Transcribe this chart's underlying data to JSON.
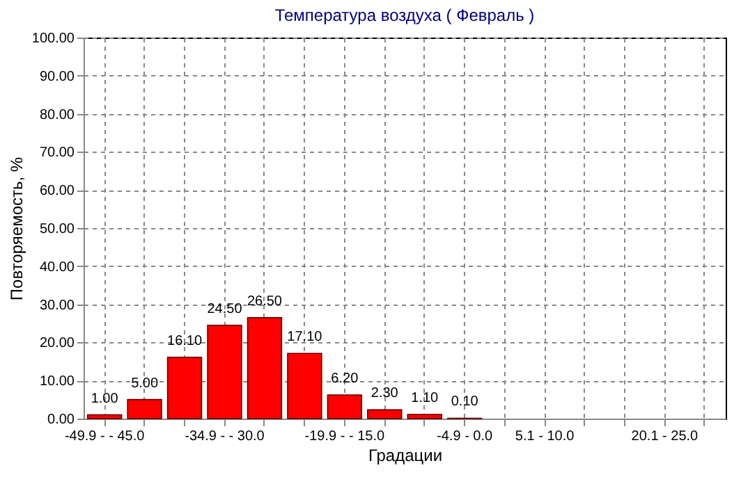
{
  "chart_data": {
    "type": "bar",
    "title": "Температура воздуха    ( Февраль )",
    "xlabel": "Градации",
    "ylabel": "Повторяемость, %",
    "categories": [
      "-49.9 -  - 45.0",
      null,
      null,
      "-34.9 -  - 30.0",
      null,
      null,
      "-19.9 -  - 15.0",
      null,
      null,
      "-4.9 - 0.0",
      null,
      "5.1 - 10.0",
      null,
      null,
      "20.1 - 25.0",
      null
    ],
    "values": [
      1.0,
      5.0,
      16.1,
      24.5,
      26.5,
      17.1,
      6.2,
      2.3,
      1.1,
      0.1,
      null,
      null,
      null,
      null,
      null,
      null
    ],
    "value_labels": [
      "1.00",
      "5.00",
      "16.10",
      "24.50",
      "26.50",
      "17.10",
      "6.20",
      "2.30",
      "1.10",
      "0.10",
      null,
      null,
      null,
      null,
      null,
      null
    ],
    "color": "#ff0000",
    "ylim": [
      0,
      100
    ],
    "yticks": [
      {
        "value": 0,
        "label": "0.00"
      },
      {
        "value": 10,
        "label": "10.00"
      },
      {
        "value": 20,
        "label": "20.00"
      },
      {
        "value": 30,
        "label": "30.00"
      },
      {
        "value": 40,
        "label": "40.00"
      },
      {
        "value": 50,
        "label": "50.00"
      },
      {
        "value": 60,
        "label": "60.00"
      },
      {
        "value": 70,
        "label": "70.00"
      },
      {
        "value": 80,
        "label": "80.00"
      },
      {
        "value": 90,
        "label": "90.00"
      },
      {
        "value": 100,
        "label": "100.00"
      }
    ],
    "grid": true
  }
}
